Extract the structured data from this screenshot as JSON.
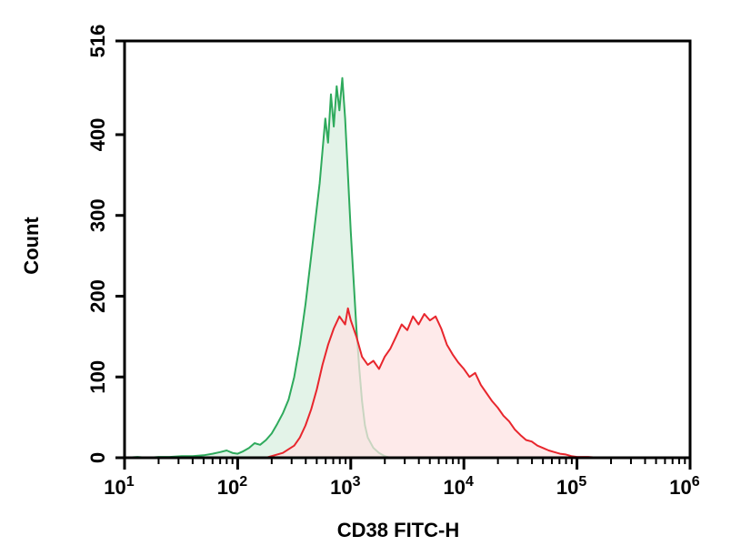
{
  "chart_data": {
    "type": "area",
    "title": "",
    "xlabel": "CD38 FITC-H",
    "ylabel": "Count",
    "x_scale": "log",
    "xlim": [
      10,
      1000000
    ],
    "ylim": [
      0,
      516
    ],
    "grid": false,
    "legend": "none",
    "x_ticks": [
      {
        "value": 10,
        "base": "10",
        "exp": "1"
      },
      {
        "value": 100,
        "base": "10",
        "exp": "2"
      },
      {
        "value": 1000,
        "base": "10",
        "exp": "3"
      },
      {
        "value": 10000,
        "base": "10",
        "exp": "4"
      },
      {
        "value": 100000,
        "base": "10",
        "exp": "5"
      },
      {
        "value": 1000000,
        "base": "10",
        "exp": "6"
      }
    ],
    "y_ticks": [
      {
        "value": 0,
        "label": "0"
      },
      {
        "value": 100,
        "label": "100"
      },
      {
        "value": 200,
        "label": "200"
      },
      {
        "value": 300,
        "label": "300"
      },
      {
        "value": 400,
        "label": "400"
      },
      {
        "value": 516,
        "label": "516"
      }
    ],
    "series": [
      {
        "color": "#2eaa5c",
        "fill": "#d9efe0",
        "points": [
          [
            10,
            0
          ],
          [
            13,
            1
          ],
          [
            16,
            0
          ],
          [
            20,
            1
          ],
          [
            25,
            1
          ],
          [
            32,
            2
          ],
          [
            40,
            2
          ],
          [
            50,
            3
          ],
          [
            60,
            5
          ],
          [
            70,
            7
          ],
          [
            80,
            9
          ],
          [
            90,
            6
          ],
          [
            100,
            5
          ],
          [
            112,
            8
          ],
          [
            126,
            12
          ],
          [
            141,
            18
          ],
          [
            158,
            16
          ],
          [
            178,
            22
          ],
          [
            200,
            30
          ],
          [
            224,
            42
          ],
          [
            251,
            55
          ],
          [
            282,
            72
          ],
          [
            316,
            100
          ],
          [
            355,
            140
          ],
          [
            398,
            190
          ],
          [
            447,
            250
          ],
          [
            501,
            310
          ],
          [
            531,
            340
          ],
          [
            562,
            380
          ],
          [
            596,
            420
          ],
          [
            630,
            390
          ],
          [
            668,
            450
          ],
          [
            708,
            410
          ],
          [
            750,
            460
          ],
          [
            794,
            430
          ],
          [
            842,
            470
          ],
          [
            891,
            420
          ],
          [
            944,
            350
          ],
          [
            1000,
            280
          ],
          [
            1060,
            220
          ],
          [
            1122,
            160
          ],
          [
            1189,
            110
          ],
          [
            1259,
            70
          ],
          [
            1334,
            40
          ],
          [
            1413,
            25
          ],
          [
            1585,
            12
          ],
          [
            1778,
            6
          ],
          [
            1995,
            2
          ],
          [
            2239,
            0
          ]
        ]
      },
      {
        "color": "#e8262d",
        "fill": "#fde3e3",
        "points": [
          [
            178,
            0
          ],
          [
            200,
            2
          ],
          [
            251,
            6
          ],
          [
            316,
            15
          ],
          [
            355,
            25
          ],
          [
            398,
            40
          ],
          [
            447,
            60
          ],
          [
            501,
            85
          ],
          [
            562,
            115
          ],
          [
            631,
            140
          ],
          [
            708,
            160
          ],
          [
            794,
            175
          ],
          [
            891,
            165
          ],
          [
            944,
            185
          ],
          [
            1000,
            170
          ],
          [
            1122,
            150
          ],
          [
            1259,
            125
          ],
          [
            1413,
            115
          ],
          [
            1585,
            120
          ],
          [
            1778,
            110
          ],
          [
            1995,
            125
          ],
          [
            2239,
            135
          ],
          [
            2512,
            150
          ],
          [
            2818,
            165
          ],
          [
            3162,
            158
          ],
          [
            3548,
            175
          ],
          [
            3981,
            165
          ],
          [
            4467,
            178
          ],
          [
            5012,
            170
          ],
          [
            5623,
            175
          ],
          [
            6310,
            160
          ],
          [
            7079,
            140
          ],
          [
            7943,
            128
          ],
          [
            8913,
            118
          ],
          [
            10000,
            110
          ],
          [
            11220,
            100
          ],
          [
            12589,
            105
          ],
          [
            14125,
            90
          ],
          [
            15849,
            80
          ],
          [
            17783,
            70
          ],
          [
            19953,
            62
          ],
          [
            22387,
            52
          ],
          [
            25119,
            45
          ],
          [
            28184,
            35
          ],
          [
            31623,
            28
          ],
          [
            35481,
            22
          ],
          [
            39811,
            20
          ],
          [
            44668,
            15
          ],
          [
            50119,
            12
          ],
          [
            56234,
            9
          ],
          [
            63096,
            7
          ],
          [
            70795,
            5
          ],
          [
            79433,
            4
          ],
          [
            89125,
            2
          ],
          [
            100000,
            1
          ],
          [
            125893,
            1
          ],
          [
            158489,
            0
          ]
        ]
      }
    ]
  }
}
